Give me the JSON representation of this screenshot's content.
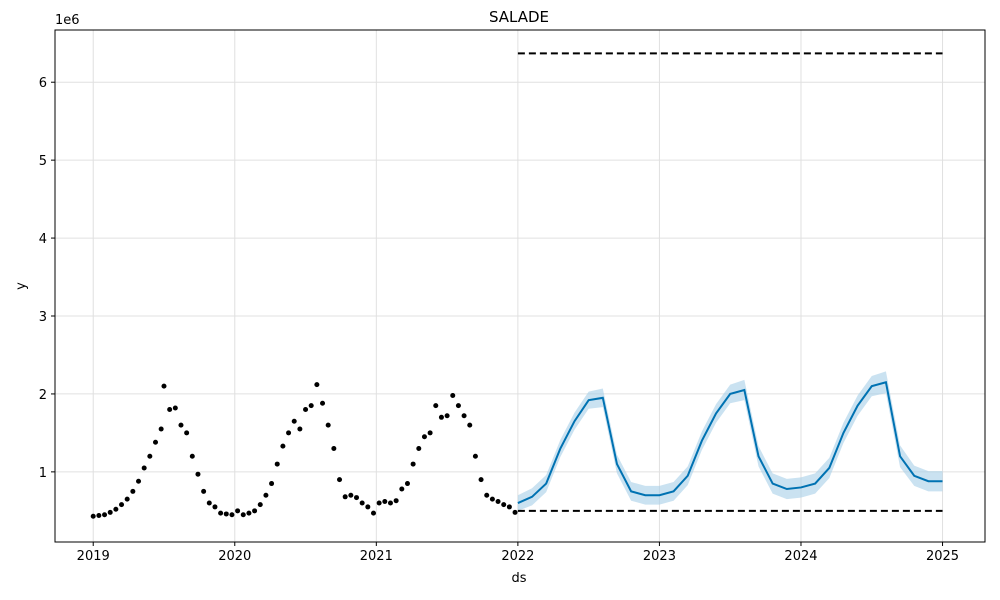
{
  "chart_data": {
    "type": "forecast",
    "title": "SALADE",
    "x_label": "ds",
    "y_label": "y",
    "y_offset_label": "1e6",
    "xlim": [
      2018.73,
      2025.3
    ],
    "ylim": [
      0.1,
      6.67
    ],
    "xticks": [
      2019,
      2020,
      2021,
      2022,
      2023,
      2024,
      2025
    ],
    "yticks": [
      1,
      2,
      3,
      4,
      5,
      6
    ],
    "grid": true,
    "observed": {
      "color": "#000000",
      "x": [
        2019.0,
        2019.04,
        2019.08,
        2019.12,
        2019.16,
        2019.2,
        2019.24,
        2019.28,
        2019.32,
        2019.36,
        2019.4,
        2019.44,
        2019.48,
        2019.5,
        2019.54,
        2019.58,
        2019.62,
        2019.66,
        2019.7,
        2019.74,
        2019.78,
        2019.82,
        2019.86,
        2019.9,
        2019.94,
        2019.98,
        2020.02,
        2020.06,
        2020.1,
        2020.14,
        2020.18,
        2020.22,
        2020.26,
        2020.3,
        2020.34,
        2020.38,
        2020.42,
        2020.46,
        2020.5,
        2020.54,
        2020.58,
        2020.62,
        2020.66,
        2020.7,
        2020.74,
        2020.78,
        2020.82,
        2020.86,
        2020.9,
        2020.94,
        2020.98,
        2021.02,
        2021.06,
        2021.1,
        2021.14,
        2021.18,
        2021.22,
        2021.26,
        2021.3,
        2021.34,
        2021.38,
        2021.42,
        2021.46,
        2021.5,
        2021.54,
        2021.58,
        2021.62,
        2021.66,
        2021.7,
        2021.74,
        2021.78,
        2021.82,
        2021.86,
        2021.9,
        2021.94,
        2021.98
      ],
      "values": [
        0.43,
        0.44,
        0.45,
        0.48,
        0.52,
        0.58,
        0.65,
        0.75,
        0.88,
        1.05,
        1.2,
        1.38,
        1.55,
        2.1,
        1.8,
        1.82,
        1.6,
        1.5,
        1.2,
        0.97,
        0.75,
        0.6,
        0.55,
        0.47,
        0.46,
        0.45,
        0.5,
        0.45,
        0.47,
        0.5,
        0.58,
        0.7,
        0.85,
        1.1,
        1.33,
        1.5,
        1.65,
        1.55,
        1.8,
        1.85,
        2.12,
        1.88,
        1.6,
        1.3,
        0.9,
        0.68,
        0.7,
        0.67,
        0.6,
        0.55,
        0.47,
        0.6,
        0.62,
        0.6,
        0.63,
        0.78,
        0.85,
        1.1,
        1.3,
        1.45,
        1.5,
        1.85,
        1.7,
        1.72,
        1.98,
        1.85,
        1.72,
        1.6,
        1.2,
        0.9,
        0.7,
        0.65,
        0.62,
        0.58,
        0.55,
        0.48
      ]
    },
    "forecast": {
      "color": "#0072B2",
      "band_color": "#a6cfe8",
      "x": [
        2022.0,
        2022.1,
        2022.2,
        2022.3,
        2022.4,
        2022.5,
        2022.6,
        2022.7,
        2022.8,
        2022.9,
        2023.0,
        2023.1,
        2023.2,
        2023.3,
        2023.4,
        2023.5,
        2023.6,
        2023.7,
        2023.8,
        2023.9,
        2024.0,
        2024.1,
        2024.2,
        2024.3,
        2024.4,
        2024.5,
        2024.6,
        2024.7,
        2024.8,
        2024.9,
        2025.0
      ],
      "values": [
        0.6,
        0.68,
        0.85,
        1.3,
        1.65,
        1.92,
        1.95,
        1.1,
        0.75,
        0.7,
        0.7,
        0.75,
        0.95,
        1.4,
        1.75,
        2.0,
        2.05,
        1.2,
        0.85,
        0.78,
        0.8,
        0.85,
        1.05,
        1.5,
        1.85,
        2.1,
        2.15,
        1.2,
        0.95,
        0.88,
        0.88
      ],
      "lower": [
        0.5,
        0.57,
        0.74,
        1.19,
        1.54,
        1.81,
        1.83,
        0.98,
        0.63,
        0.58,
        0.58,
        0.63,
        0.83,
        1.28,
        1.63,
        1.88,
        1.92,
        1.07,
        0.72,
        0.65,
        0.67,
        0.72,
        0.92,
        1.37,
        1.72,
        1.97,
        2.01,
        1.06,
        0.82,
        0.75,
        0.75
      ],
      "upper": [
        0.7,
        0.79,
        0.96,
        1.41,
        1.76,
        2.03,
        2.07,
        1.22,
        0.87,
        0.82,
        0.82,
        0.87,
        1.07,
        1.52,
        1.87,
        2.12,
        2.18,
        1.33,
        0.98,
        0.91,
        0.93,
        0.98,
        1.18,
        1.63,
        1.98,
        2.23,
        2.29,
        1.34,
        1.08,
        1.01,
        1.01
      ]
    },
    "cap": {
      "x": [
        2022,
        2025
      ],
      "values": [
        6.37,
        6.37
      ]
    },
    "floor": {
      "x": [
        2022,
        2025
      ],
      "values": [
        0.5,
        0.5
      ]
    }
  }
}
